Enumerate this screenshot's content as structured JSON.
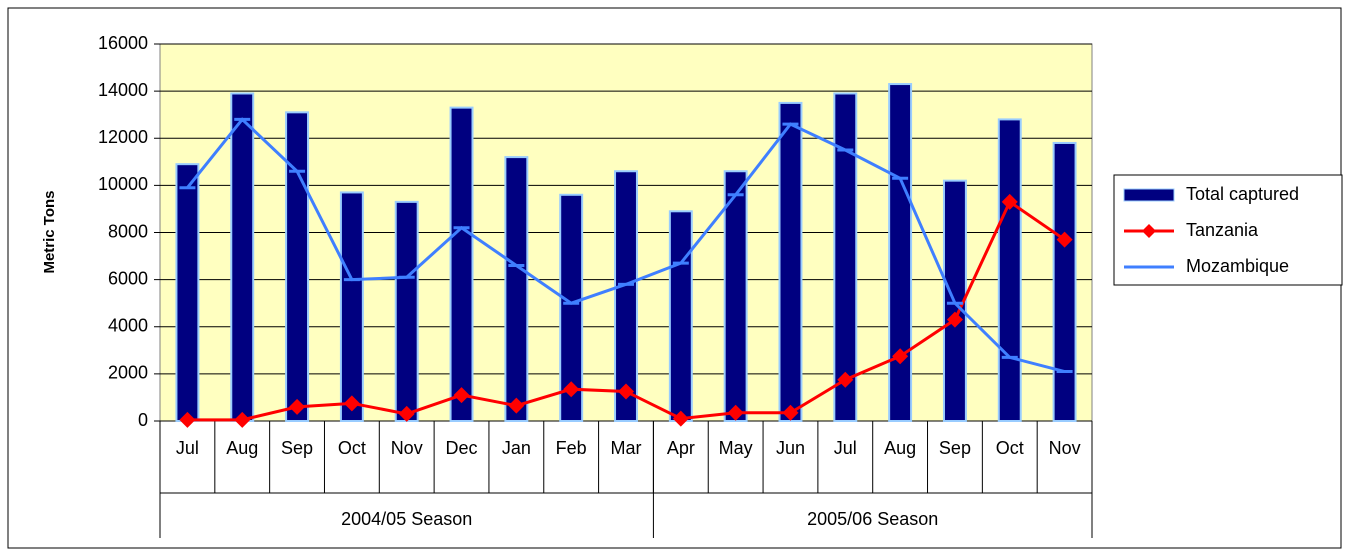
{
  "chart_data": {
    "type": "bar",
    "y_label": "Metric Tons",
    "categories": [
      "Jul",
      "Aug",
      "Sep",
      "Oct",
      "Nov",
      "Dec",
      "Jan",
      "Feb",
      "Mar",
      "Apr",
      "May",
      "Jun",
      "Jul",
      "Aug",
      "Sep",
      "Oct",
      "Nov"
    ],
    "groups": [
      {
        "label": "2004/05 Season",
        "span": 9
      },
      {
        "label": "2005/06 Season",
        "span": 8
      }
    ],
    "series": [
      {
        "name": "Total captured",
        "type": "bar",
        "color": "#000080",
        "values": [
          10900,
          13900,
          13100,
          9700,
          9300,
          13300,
          11200,
          9600,
          10600,
          8900,
          10600,
          13500,
          13900,
          14300,
          10200,
          12800,
          11800
        ]
      },
      {
        "name": "Tanzania",
        "type": "line",
        "marker": "diamond",
        "color": "#ff0000",
        "values": [
          50,
          50,
          600,
          750,
          300,
          1100,
          650,
          1350,
          1250,
          100,
          350,
          350,
          1750,
          2750,
          4300,
          9300,
          7700
        ]
      },
      {
        "name": "Mozambique",
        "type": "line",
        "marker": "dash",
        "color": "#3f7fff",
        "values": [
          9900,
          12800,
          10600,
          6000,
          6100,
          8200,
          6600,
          5000,
          5800,
          6700,
          9600,
          12600,
          11500,
          10300,
          5000,
          2700,
          2100
        ]
      }
    ],
    "ylim": [
      0,
      16000
    ],
    "yticks": [
      0,
      2000,
      4000,
      6000,
      8000,
      10000,
      12000,
      14000,
      16000
    ],
    "grid": true,
    "legend": "right"
  }
}
